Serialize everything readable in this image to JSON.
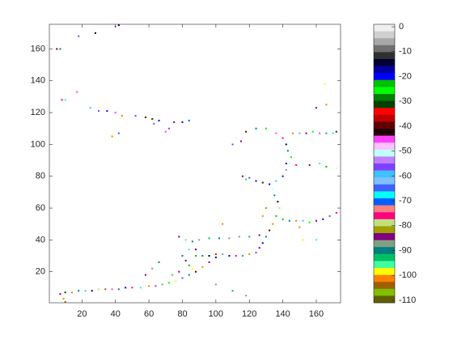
{
  "chart_data": {
    "type": "image",
    "xlim": [
      0.5,
      174.5
    ],
    "ylim": [
      0.5,
      175.5
    ],
    "xticks": [
      20,
      40,
      60,
      80,
      100,
      120,
      140,
      160
    ],
    "yticks": [
      20,
      40,
      60,
      80,
      100,
      120,
      140,
      160
    ],
    "clim": [
      -111,
      1
    ],
    "cticks": [
      0,
      -10,
      -20,
      -30,
      -40,
      -50,
      -60,
      -70,
      -80,
      -90,
      -100,
      -110
    ],
    "colormap": [
      "#f0f0f0",
      "#d0d0d0",
      "#a8a8a8",
      "#707070",
      "#303030",
      "#000033",
      "#0000a0",
      "#0000ff",
      "#00c000",
      "#00ff00",
      "#008000",
      "#004000",
      "#ff0000",
      "#c00000",
      "#600000",
      "#200000",
      "#ff40ff",
      "#ffc0ff",
      "#c0ffff",
      "#c080ff",
      "#8040ff",
      "#40c0ff",
      "#80c0ff",
      "#4060ff",
      "#00ffff",
      "#0060ff",
      "#ff8080",
      "#ff0080",
      "#c0e080",
      "#a0a000",
      "#800080",
      "#80a080",
      "#008080",
      "#00c060",
      "#40ffa0",
      "#ffff00",
      "#ff8000",
      "#a06000",
      "#80c000",
      "#606000"
    ],
    "x": [
      7,
      10,
      14,
      18,
      22,
      26,
      30,
      34,
      38,
      42,
      46,
      50,
      55,
      60,
      64,
      68,
      72,
      76,
      80,
      84,
      88,
      92,
      96,
      100,
      9,
      10,
      88,
      92,
      96,
      100,
      104,
      108,
      112,
      116,
      120,
      124,
      126,
      128,
      130,
      132,
      134,
      136,
      138,
      137,
      135,
      134,
      132,
      128,
      124,
      120,
      116,
      118,
      136,
      140,
      142,
      144,
      145,
      143,
      142,
      140,
      136,
      130,
      124,
      118,
      112,
      110,
      115,
      140,
      144,
      148,
      152,
      156,
      160,
      164,
      168,
      172,
      146,
      150,
      154,
      158,
      162,
      166,
      170,
      172,
      142,
      148,
      152,
      156,
      162,
      166,
      172,
      78,
      82,
      86,
      90,
      96,
      102,
      108,
      114,
      120,
      126,
      80,
      82,
      84,
      86,
      78,
      74,
      88,
      84,
      8,
      10,
      5,
      7,
      18,
      17,
      28,
      40,
      42,
      25,
      30,
      35,
      40,
      44,
      52,
      58,
      62,
      63,
      66,
      70,
      72,
      75,
      80,
      84,
      38,
      42,
      128,
      152,
      160,
      165,
      160,
      166,
      58,
      62,
      66,
      100,
      110,
      118,
      104,
      130,
      150
    ],
    "y": [
      6,
      7,
      7,
      8,
      8,
      8,
      9,
      9,
      9,
      9,
      10,
      10,
      10,
      11,
      11,
      12,
      13,
      14,
      16,
      18,
      20,
      23,
      26,
      29,
      3,
      1,
      30,
      30,
      30,
      31,
      31,
      30,
      30,
      30,
      31,
      32,
      35,
      38,
      42,
      46,
      50,
      55,
      60,
      64,
      68,
      72,
      75,
      76,
      77,
      79,
      80,
      78,
      77,
      80,
      84,
      88,
      92,
      96,
      100,
      104,
      107,
      110,
      110,
      108,
      104,
      100,
      102,
      53,
      52,
      52,
      52,
      51,
      52,
      53,
      55,
      57,
      107,
      107,
      107,
      108,
      107,
      107,
      107,
      108,
      88,
      87,
      88,
      87,
      88,
      86,
      85,
      42,
      40,
      39,
      40,
      41,
      41,
      41,
      42,
      42,
      43,
      30,
      27,
      24,
      22,
      20,
      18,
      34,
      34,
      128,
      128,
      160,
      160,
      168,
      133,
      170,
      174,
      175,
      123,
      121,
      121,
      120,
      118,
      118,
      117,
      116,
      113,
      115,
      108,
      110,
      114,
      114,
      115,
      105,
      107,
      55,
      40,
      40,
      138,
      123,
      125,
      18,
      22,
      26,
      12,
      8,
      5,
      50,
      60,
      48
    ],
    "values": [
      -85,
      -30,
      -100,
      -90,
      -60,
      -15,
      -80,
      -105,
      -45,
      -90,
      -20,
      -75,
      -95,
      -100,
      -55,
      -88,
      -25,
      -98,
      -65,
      -90,
      -40,
      -100,
      -85,
      -18,
      -100,
      -105,
      -22,
      -90,
      -15,
      -35,
      -88,
      -20,
      -75,
      -92,
      -100,
      -55,
      -85,
      -20,
      -90,
      -40,
      -100,
      -22,
      -80,
      -15,
      -90,
      -50,
      -20,
      -40,
      -20,
      -55,
      -85,
      -25,
      -60,
      -20,
      -88,
      -50,
      -25,
      -90,
      -15,
      -75,
      -45,
      -25,
      -90,
      -40,
      -50,
      -65,
      -85,
      -22,
      -90,
      -100,
      -60,
      -25,
      -85,
      -20,
      -55,
      -75,
      -100,
      -60,
      -85,
      -25,
      -45,
      -92,
      -60,
      -30,
      -20,
      -75,
      -50,
      -85,
      -95,
      -22,
      -50,
      -85,
      -95,
      -90,
      -88,
      -92,
      -90,
      -86,
      -88,
      -93,
      -85,
      -90,
      -85,
      -22,
      -98,
      -85,
      -88,
      -20,
      -95,
      -75,
      -95,
      -40,
      -90,
      -55,
      -45,
      -15,
      -45,
      -15,
      -60,
      -55,
      -20,
      -45,
      -100,
      -55,
      -40,
      -30,
      -55,
      -20,
      -45,
      -55,
      -85,
      -20,
      -70,
      -102,
      -65,
      -100,
      -98,
      -95,
      -98,
      -85,
      -100,
      -85,
      -88,
      -90,
      -87,
      -92,
      -86,
      -102,
      -82,
      -100
    ]
  }
}
